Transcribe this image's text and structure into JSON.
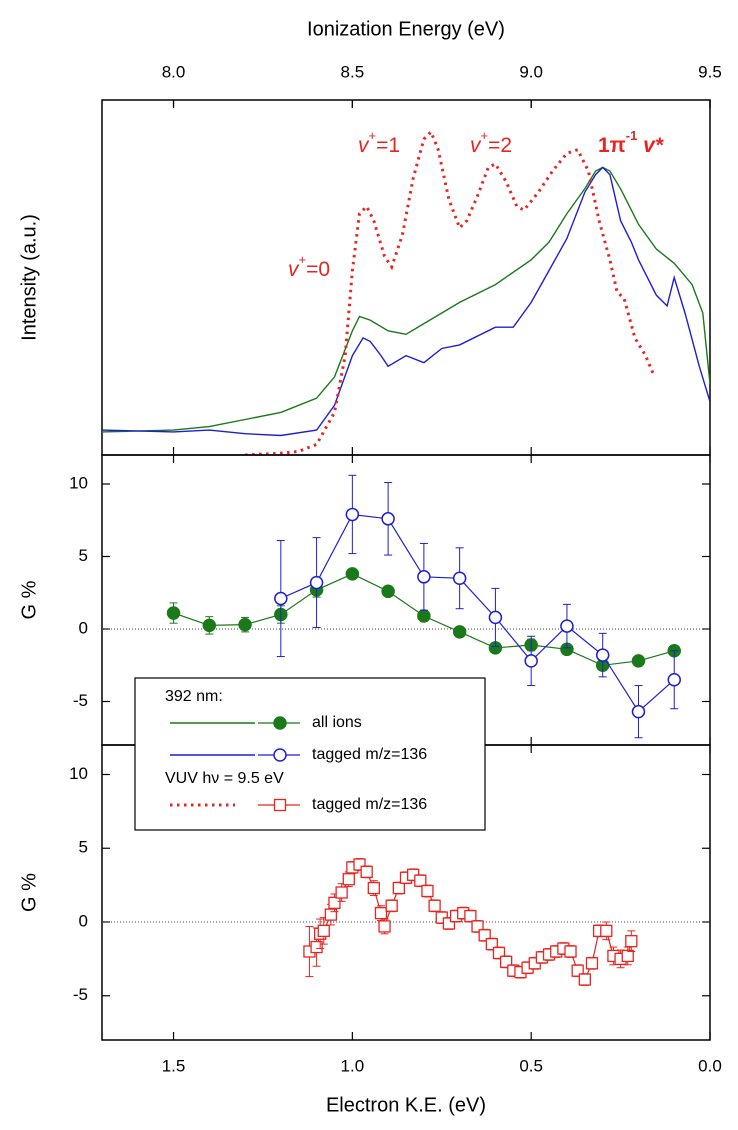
{
  "chart_data": [
    {
      "type": "line",
      "ylabel": "Intensity (a.u.)",
      "x2label": "Ionization Energy (eV)",
      "xlim": [
        1.7,
        0.0
      ],
      "ylim": [
        0,
        1
      ],
      "x2lim": [
        7.8,
        9.5
      ],
      "x2ticks": [
        {
          "value": 8.0,
          "label": "8.0"
        },
        8.5,
        {
          "value": 9.0,
          "label": "9.0"
        },
        9.5
      ],
      "series": [
        {
          "color": "#1a7a1a",
          "dash": "solid",
          "x": [
            1.7,
            1.5,
            1.4,
            1.3,
            1.2,
            1.1,
            1.05,
            1.0,
            0.98,
            0.95,
            0.9,
            0.85,
            0.8,
            0.7,
            0.6,
            0.5,
            0.45,
            0.4,
            0.35,
            0.32,
            0.3,
            0.28,
            0.25,
            0.2,
            0.15,
            0.1,
            0.05,
            0.02,
            0.0
          ],
          "values": [
            0.065,
            0.07,
            0.08,
            0.1,
            0.12,
            0.16,
            0.22,
            0.35,
            0.39,
            0.38,
            0.35,
            0.34,
            0.37,
            0.43,
            0.48,
            0.55,
            0.6,
            0.68,
            0.75,
            0.8,
            0.81,
            0.8,
            0.75,
            0.65,
            0.58,
            0.54,
            0.48,
            0.4,
            0.2
          ]
        },
        {
          "color": "#1f1fd0",
          "dash": "solid",
          "x": [
            1.7,
            1.5,
            1.4,
            1.3,
            1.2,
            1.1,
            1.05,
            1.0,
            0.97,
            0.95,
            0.92,
            0.9,
            0.85,
            0.8,
            0.75,
            0.7,
            0.6,
            0.55,
            0.5,
            0.45,
            0.4,
            0.35,
            0.32,
            0.3,
            0.28,
            0.25,
            0.22,
            0.2,
            0.15,
            0.12,
            0.1,
            0.07,
            0.03,
            0.0
          ],
          "values": [
            0.07,
            0.065,
            0.07,
            0.06,
            0.055,
            0.07,
            0.14,
            0.28,
            0.33,
            0.32,
            0.28,
            0.25,
            0.28,
            0.26,
            0.3,
            0.31,
            0.36,
            0.36,
            0.43,
            0.52,
            0.61,
            0.74,
            0.79,
            0.81,
            0.79,
            0.66,
            0.6,
            0.55,
            0.45,
            0.42,
            0.5,
            0.4,
            0.25,
            0.15
          ]
        },
        {
          "color": "#e8251f",
          "dash": "dotted",
          "x": [
            1.3,
            1.2,
            1.15,
            1.1,
            1.05,
            1.02,
            1.0,
            0.98,
            0.96,
            0.94,
            0.91,
            0.89,
            0.86,
            0.83,
            0.8,
            0.78,
            0.76,
            0.73,
            0.7,
            0.68,
            0.65,
            0.62,
            0.6,
            0.57,
            0.54,
            0.52,
            0.48,
            0.44,
            0.4,
            0.37,
            0.34,
            0.31,
            0.28,
            0.26,
            0.24,
            0.21,
            0.18,
            0.155
          ],
          "values": [
            0.0,
            0.005,
            0.01,
            0.03,
            0.12,
            0.28,
            0.52,
            0.68,
            0.7,
            0.66,
            0.56,
            0.53,
            0.62,
            0.78,
            0.89,
            0.91,
            0.86,
            0.72,
            0.64,
            0.66,
            0.73,
            0.81,
            0.82,
            0.77,
            0.7,
            0.69,
            0.74,
            0.8,
            0.85,
            0.86,
            0.8,
            0.66,
            0.55,
            0.46,
            0.44,
            0.33,
            0.28,
            0.22
          ]
        }
      ],
      "annotations": [
        {
          "base": "v",
          "sup": "+",
          "rest": "=0"
        },
        {
          "base": "v",
          "sup": "+",
          "rest": "=1"
        },
        {
          "base": "v",
          "sup": "+",
          "rest": "=2"
        },
        {
          "base": "1π",
          "sup": "-1",
          "rest": " v*"
        }
      ]
    },
    {
      "type": "errorbar",
      "ylabel": "G %",
      "xlim": [
        1.7,
        0.0
      ],
      "ylim": [
        -8,
        12
      ],
      "yticks": [
        -5,
        0,
        5,
        10
      ],
      "zero_line": true,
      "legend_title": "392 nm:",
      "series": [
        {
          "name": "all ions",
          "color": "#1a7a1a",
          "marker": "circle-filled",
          "x": [
            1.5,
            1.4,
            1.3,
            1.2,
            1.1,
            1.0,
            0.9,
            0.8,
            0.7,
            0.6,
            0.5,
            0.4,
            0.3,
            0.2,
            0.1
          ],
          "values": [
            1.1,
            0.25,
            0.3,
            1.0,
            2.7,
            3.8,
            2.6,
            0.9,
            -0.2,
            -1.3,
            -1.1,
            -1.4,
            -2.5,
            -2.2,
            -1.5
          ],
          "errors": [
            0.7,
            0.6,
            0.5,
            0.6,
            0.5,
            0.3,
            0.3,
            0.3,
            0.2,
            0.3,
            0.4,
            0.3,
            0.3,
            0.2,
            0.2
          ]
        },
        {
          "name": "tagged m/z=136",
          "color": "#1f1fd0",
          "marker": "circle-open",
          "x": [
            1.2,
            1.1,
            1.0,
            0.9,
            0.8,
            0.7,
            0.6,
            0.5,
            0.4,
            0.3,
            0.2,
            0.1
          ],
          "values": [
            2.1,
            3.2,
            7.9,
            7.6,
            3.6,
            3.5,
            0.8,
            -2.2,
            0.2,
            -1.8,
            -5.7,
            -3.5
          ],
          "errors": [
            4.0,
            3.1,
            2.7,
            2.5,
            2.3,
            2.1,
            2.0,
            1.7,
            1.5,
            1.5,
            1.8,
            2.0
          ]
        }
      ]
    },
    {
      "type": "errorbar",
      "ylabel": "G %",
      "xlabel": "Electron K.E. (eV)",
      "xlim": [
        1.7,
        0.0
      ],
      "ylim": [
        -8,
        12
      ],
      "xticks": [
        1.5,
        {
          "value": 1.0,
          "label": "1.0"
        },
        0.5,
        {
          "value": 0.0,
          "label": "0.0"
        }
      ],
      "yticks": [
        -5,
        0,
        5,
        10
      ],
      "zero_line": true,
      "legend_title": "VUV hν = 9.5 eV",
      "series": [
        {
          "name": "tagged m/z=136",
          "color": "#e8251f",
          "marker": "square-open",
          "legend_dash": "dotted",
          "x": [
            1.12,
            1.1,
            1.09,
            1.08,
            1.06,
            1.05,
            1.03,
            1.01,
            1.0,
            0.98,
            0.96,
            0.94,
            0.92,
            0.91,
            0.89,
            0.87,
            0.85,
            0.83,
            0.81,
            0.79,
            0.77,
            0.75,
            0.73,
            0.71,
            0.69,
            0.67,
            0.65,
            0.63,
            0.61,
            0.59,
            0.57,
            0.55,
            0.53,
            0.51,
            0.49,
            0.47,
            0.45,
            0.43,
            0.41,
            0.39,
            0.37,
            0.35,
            0.33,
            0.31,
            0.29,
            0.27,
            0.25,
            0.23,
            0.22
          ],
          "values": [
            -2.0,
            -1.7,
            -0.8,
            -0.6,
            0.5,
            1.3,
            2.0,
            2.9,
            3.7,
            3.9,
            3.4,
            2.3,
            0.6,
            -0.3,
            1.1,
            2.3,
            3.0,
            3.2,
            2.8,
            2.1,
            1.1,
            0.3,
            -0.1,
            0.4,
            0.6,
            0.4,
            -0.3,
            -0.9,
            -1.5,
            -2.1,
            -2.7,
            -3.3,
            -3.4,
            -3.1,
            -2.8,
            -2.4,
            -2.2,
            -2.0,
            -1.8,
            -2.0,
            -3.3,
            -3.9,
            -2.8,
            -0.6,
            -0.6,
            -2.3,
            -2.5,
            -2.3,
            -1.3
          ],
          "errors": [
            1.7,
            1.3,
            1.0,
            0.9,
            0.7,
            0.6,
            0.6,
            0.5,
            0.4,
            0.4,
            0.4,
            0.5,
            0.5,
            0.5,
            0.4,
            0.4,
            0.4,
            0.4,
            0.4,
            0.4,
            0.4,
            0.4,
            0.4,
            0.4,
            0.4,
            0.4,
            0.4,
            0.4,
            0.4,
            0.4,
            0.4,
            0.4,
            0.4,
            0.4,
            0.4,
            0.4,
            0.4,
            0.4,
            0.4,
            0.4,
            0.4,
            0.4,
            0.4,
            0.4,
            0.6,
            0.6,
            0.6,
            0.6,
            0.7
          ]
        }
      ]
    }
  ]
}
